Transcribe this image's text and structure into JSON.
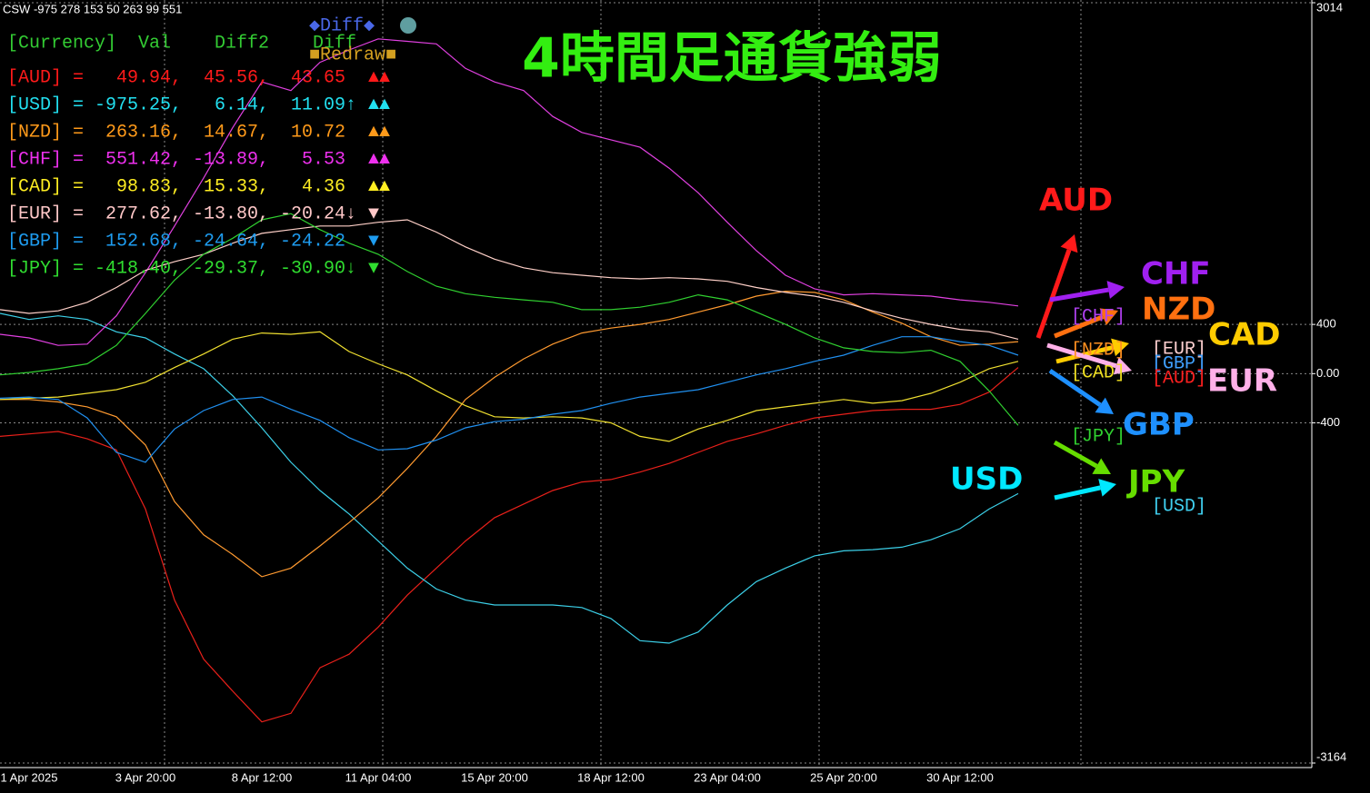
{
  "window_title": "CSW -975 278 153 50 263 99 551",
  "heading": "4時間足通貨強弱",
  "panel": {
    "header": "[Currency]  Val    Diff2    Diff",
    "buttons": {
      "diff": "◆Diff◆",
      "redraw": "■Redraw■"
    },
    "rows": [
      {
        "text": "[AUD] =   49.94,  45.56,  43.65",
        "marks": "▲▲",
        "color": "#ff1a1a"
      },
      {
        "text": "[USD] = -975.25,   6.14,  11.09↑",
        "marks": "▲▲",
        "color": "#22e0f0"
      },
      {
        "text": "[NZD] =  263.16,  14.67,  10.72",
        "marks": "▲▲",
        "color": "#ff9a1a"
      },
      {
        "text": "[CHF] =  551.42, -13.89,   5.53",
        "marks": "▲▲",
        "color": "#ee30ee"
      },
      {
        "text": "[CAD] =   98.83,  15.33,   4.36",
        "marks": "▲▲",
        "color": "#ffee22"
      },
      {
        "text": "[EUR] =  277.62, -13.80, -20.24↓",
        "marks": "▼",
        "color": "#ffc8c8"
      },
      {
        "text": "[GBP] =  152.68, -24.64, -24.22",
        "marks": "▼",
        "color": "#1e9cf0"
      },
      {
        "text": "[JPY] = -418.40, -29.37, -30.90↓",
        "marks": "▼",
        "color": "#30dd30"
      }
    ]
  },
  "tags": [
    {
      "text": "[CHF]",
      "color": "#b040f0"
    },
    {
      "text": "[NZD]",
      "color": "#ff9020"
    },
    {
      "text": "[CAD]",
      "color": "#f0e020"
    },
    {
      "text": "[EUR]",
      "color": "#ffd0d0"
    },
    {
      "text": "[GBP]",
      "color": "#40a0ff"
    },
    {
      "text": "[AUD]",
      "color": "#ff2020"
    },
    {
      "text": "[JPY]",
      "color": "#30d030"
    },
    {
      "text": "[USD]",
      "color": "#40d0f0"
    }
  ],
  "chart_data": {
    "type": "line",
    "categories": [
      null,
      "1 Apr 2025",
      null,
      null,
      null,
      "3 Apr 20:00",
      null,
      null,
      null,
      "8 Apr 12:00",
      null,
      null,
      null,
      "11 Apr 04:00",
      null,
      null,
      null,
      "15 Apr 20:00",
      null,
      null,
      null,
      "18 Apr 12:00",
      null,
      null,
      null,
      "23 Apr 04:00",
      null,
      null,
      null,
      "25 Apr 20:00",
      null,
      null,
      null,
      "30 Apr 12:00",
      null,
      null
    ],
    "ylim": [
      -3164,
      3014
    ],
    "yticks": [
      3014,
      400,
      {
        "value": 0,
        "label": "0.00"
      },
      -400,
      -3164
    ],
    "grid": true,
    "series": [
      {
        "name": "AUD",
        "color": "#e8201a",
        "label_color": "#ff1a1a",
        "values": [
          -510,
          -490,
          -470,
          -530,
          -620,
          -1100,
          -1840,
          -2320,
          -2580,
          -2830,
          -2760,
          -2390,
          -2280,
          -2060,
          -1800,
          -1580,
          -1360,
          -1170,
          -1060,
          -950,
          -880,
          -860,
          -800,
          -730,
          -640,
          -550,
          -490,
          -420,
          -360,
          -330,
          -300,
          -290,
          -290,
          -250,
          -150,
          50
        ]
      },
      {
        "name": "USD",
        "color": "#3cd0e8",
        "label_color": "#00e8ff",
        "values": [
          490,
          440,
          470,
          440,
          340,
          290,
          160,
          40,
          -180,
          -440,
          -720,
          -950,
          -1140,
          -1360,
          -1580,
          -1750,
          -1840,
          -1880,
          -1880,
          -1880,
          -1900,
          -1990,
          -2170,
          -2190,
          -2100,
          -1880,
          -1690,
          -1580,
          -1480,
          -1440,
          -1430,
          -1410,
          -1350,
          -1260,
          -1100,
          -975
        ]
      },
      {
        "name": "NZD",
        "color": "#ff9a30",
        "label_color": "#ff7010",
        "values": [
          -210,
          -210,
          -230,
          -270,
          -350,
          -580,
          -1040,
          -1310,
          -1470,
          -1650,
          -1580,
          -1400,
          -1210,
          -1010,
          -770,
          -510,
          -210,
          -30,
          120,
          240,
          330,
          370,
          400,
          440,
          500,
          560,
          630,
          670,
          660,
          600,
          500,
          410,
          300,
          230,
          240,
          260
        ]
      },
      {
        "name": "CHF",
        "color": "#e040e0",
        "label_color": "#a020f0",
        "values": [
          320,
          290,
          230,
          240,
          470,
          820,
          1200,
          1590,
          2000,
          2370,
          2300,
          2530,
          2630,
          2720,
          2700,
          2680,
          2480,
          2370,
          2300,
          2090,
          1960,
          1900,
          1840,
          1670,
          1470,
          1230,
          1000,
          800,
          690,
          640,
          650,
          640,
          630,
          600,
          580,
          550
        ]
      },
      {
        "name": "CAD",
        "color": "#f0e030",
        "label_color": "#ffcc00",
        "values": [
          -210,
          -200,
          -190,
          -160,
          -130,
          -70,
          50,
          160,
          280,
          330,
          320,
          340,
          180,
          80,
          -10,
          -140,
          -260,
          -350,
          -360,
          -350,
          -360,
          -400,
          -510,
          -550,
          -450,
          -380,
          -300,
          -270,
          -240,
          -210,
          -240,
          -220,
          -160,
          -70,
          40,
          100
        ]
      },
      {
        "name": "EUR",
        "color": "#ffd0c8",
        "label_color": "#ffb0e8",
        "values": [
          520,
          490,
          510,
          580,
          700,
          840,
          910,
          970,
          1060,
          1140,
          1170,
          1200,
          1200,
          1230,
          1250,
          1150,
          1030,
          930,
          860,
          820,
          800,
          780,
          770,
          780,
          770,
          750,
          700,
          660,
          630,
          580,
          510,
          450,
          400,
          360,
          340,
          280
        ]
      },
      {
        "name": "GBP",
        "color": "#2090f0",
        "label_color": "#1e90ff",
        "values": [
          -200,
          -190,
          -210,
          -360,
          -640,
          -720,
          -450,
          -300,
          -210,
          -190,
          -290,
          -380,
          -520,
          -620,
          -610,
          -540,
          -440,
          -390,
          -370,
          -330,
          -300,
          -240,
          -190,
          -160,
          -130,
          -70,
          -10,
          40,
          100,
          150,
          230,
          300,
          300,
          260,
          230,
          150
        ]
      },
      {
        "name": "JPY",
        "color": "#30d030",
        "label_color": "#66dd00",
        "values": [
          -10,
          10,
          40,
          80,
          230,
          490,
          760,
          970,
          1100,
          1250,
          1300,
          1170,
          1060,
          970,
          830,
          710,
          650,
          620,
          600,
          580,
          520,
          520,
          540,
          580,
          640,
          600,
          500,
          400,
          290,
          210,
          180,
          170,
          190,
          100,
          -140,
          -420
        ]
      }
    ]
  }
}
